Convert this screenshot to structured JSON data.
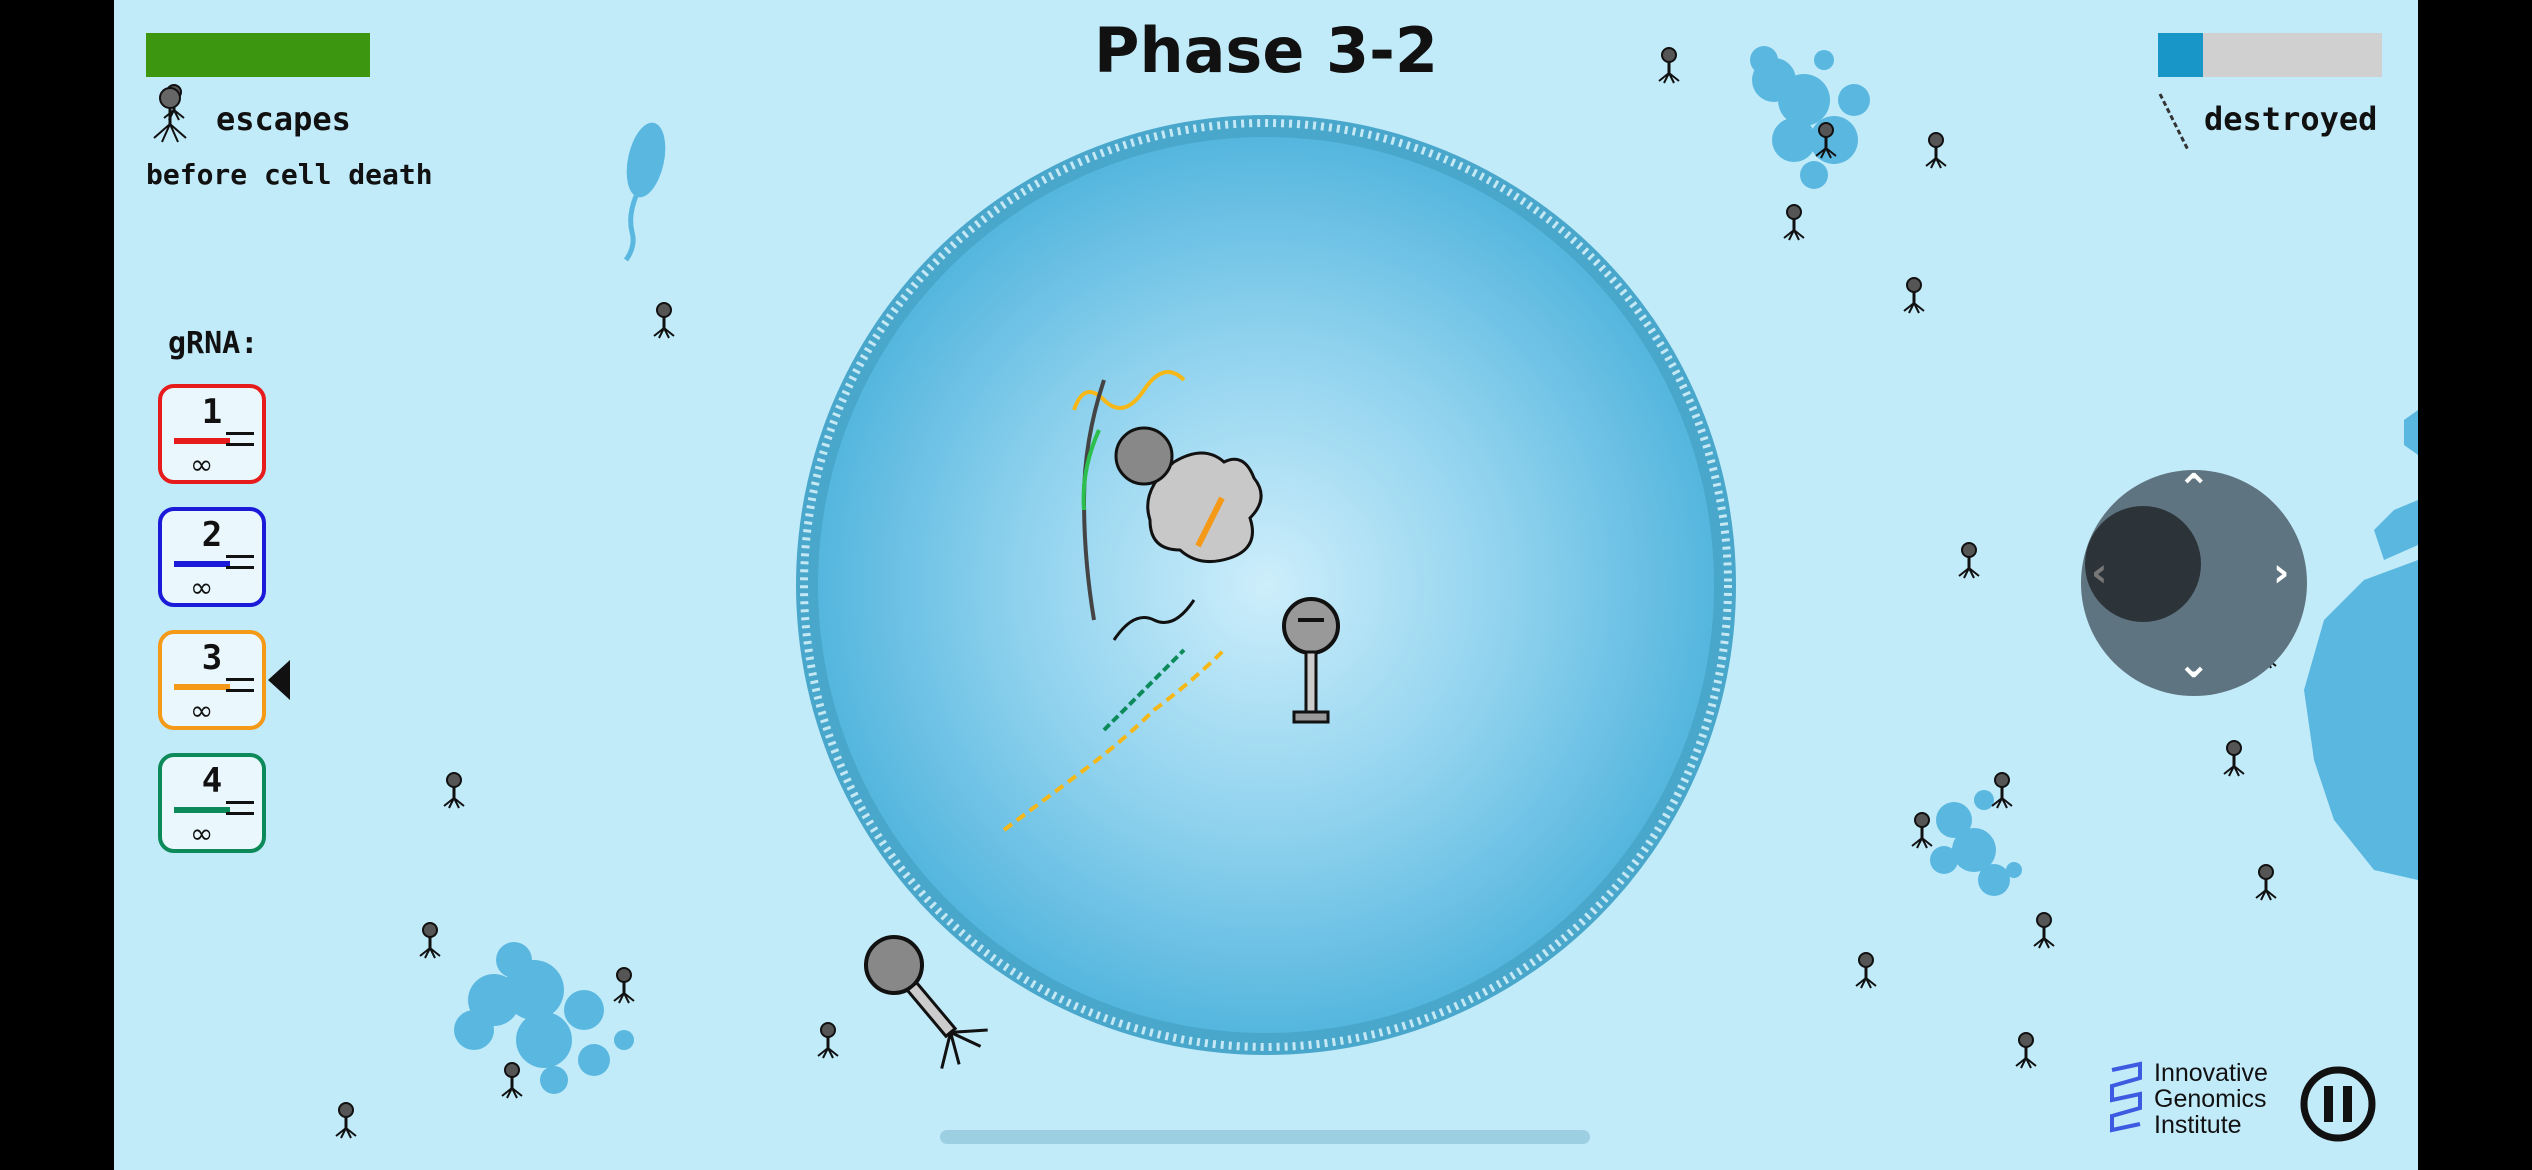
{
  "hud": {
    "title": "Phase 3-2",
    "escape_label": "escapes",
    "escape_sublabel": "before cell death",
    "escape_progress": 1.0,
    "destroyed_label": "destroyed",
    "destroyed_progress": 0.2
  },
  "grna": {
    "heading": "gRNA:",
    "selected": "3",
    "cards": [
      {
        "label": "1",
        "color": "#e61c1c"
      },
      {
        "label": "2",
        "color": "#1a1ad8"
      },
      {
        "label": "3",
        "color": "#f59a18"
      },
      {
        "label": "4",
        "color": "#0d8a5a"
      }
    ]
  },
  "controls": {
    "joystick_arrows": [
      "up",
      "down",
      "left",
      "right"
    ],
    "pause_icon": "pause-icon"
  },
  "branding": {
    "logo_line1": "Innovative",
    "logo_line2": "Genomics",
    "logo_line3": "Institute"
  },
  "colors": {
    "background": "#c2ebfa",
    "cell_fill": "#5fbde3",
    "cell_membrane": "#4aa7cc",
    "escape_bar": "#3d9610",
    "destroyed_bar": "#1996c8"
  }
}
